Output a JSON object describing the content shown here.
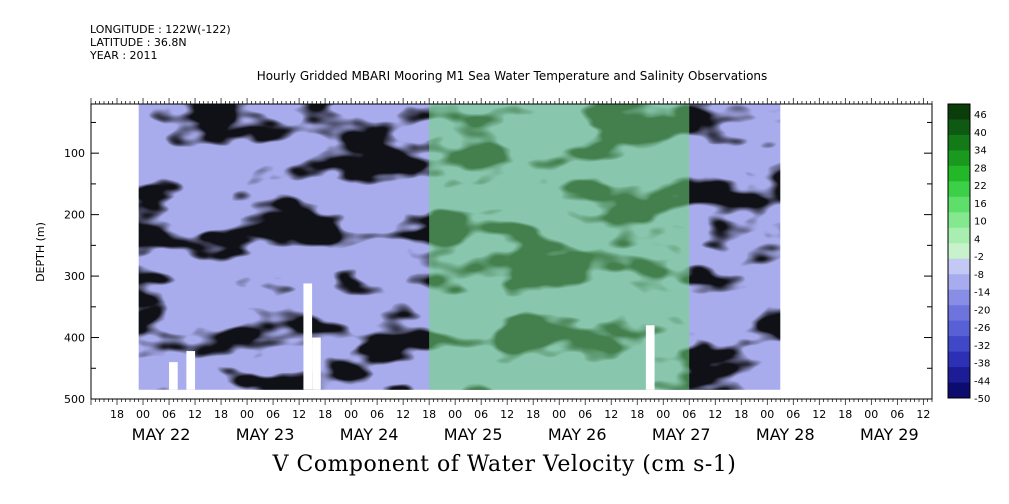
{
  "header": {
    "longitude": "LONGITUDE : 122W(-122)",
    "latitude": "LATITUDE : 36.8N",
    "year": "YEAR : 2011"
  },
  "chart_data": {
    "type": "heatmap",
    "title": "Hourly Gridded MBARI Mooring M1 Sea Water Temperature and Salinity Observations",
    "xlabel": "V Component of Water Velocity (cm s-1)",
    "ylabel": "DEPTH (m)",
    "x_axis": {
      "start": "2011-05-21T12:00",
      "end": "2011-05-29T14:00",
      "hour_ticks": [
        "18",
        "00",
        "06",
        "12",
        "18",
        "00",
        "06",
        "12",
        "18",
        "00",
        "06",
        "12",
        "18",
        "00",
        "06",
        "12",
        "18",
        "00",
        "06",
        "12",
        "18",
        "00",
        "06",
        "12",
        "18",
        "00",
        "06",
        "12",
        "18",
        "00",
        "06",
        "12"
      ],
      "date_labels": [
        "MAY 22",
        "MAY 23",
        "MAY 24",
        "MAY 25",
        "MAY 26",
        "MAY 27",
        "MAY 28",
        "MAY 29"
      ]
    },
    "y_axis": {
      "ylim": [
        500,
        20
      ],
      "inverted": true,
      "tick_labels": [
        "100",
        "200",
        "300",
        "400",
        "500"
      ]
    },
    "data_extent": {
      "time_start": "2011-05-21T23:00",
      "time_end": "2011-05-28T03:00",
      "depth_top": 20,
      "depth_bottom": 485
    },
    "colorbar": {
      "labels": [
        "46",
        "40",
        "34",
        "28",
        "22",
        "16",
        "10",
        "4",
        "-2",
        "-8",
        "-14",
        "-20",
        "-26",
        "-32",
        "-38",
        "-44",
        "-50"
      ],
      "colors": [
        "#0a3d0a",
        "#0f5a12",
        "#147a18",
        "#199a1f",
        "#22b828",
        "#3cd048",
        "#5ede6a",
        "#84e88e",
        "#a8eeb0",
        "#c8f2cc",
        "#c4c8f4",
        "#a6acee",
        "#888ee6",
        "#6e74de",
        "#5860d6",
        "#4048c8",
        "#2c30b4",
        "#1c1c96",
        "#0c0c70"
      ]
    },
    "gaps": [
      {
        "from": "2011-05-22T06:00",
        "to": "2011-05-22T08:00",
        "depth_from": 440,
        "depth_to": 485
      },
      {
        "from": "2011-05-22T10:00",
        "to": "2011-05-22T12:00",
        "depth_from": 422,
        "depth_to": 485
      },
      {
        "from": "2011-05-23T13:00",
        "to": "2011-05-23T15:00",
        "depth_from": 312,
        "depth_to": 485
      },
      {
        "from": "2011-05-23T15:00",
        "to": "2011-05-23T17:00",
        "depth_from": 400,
        "depth_to": 485
      },
      {
        "from": "2011-05-26T20:00",
        "to": "2011-05-26T22:00",
        "depth_from": 380,
        "depth_to": 485
      }
    ]
  }
}
